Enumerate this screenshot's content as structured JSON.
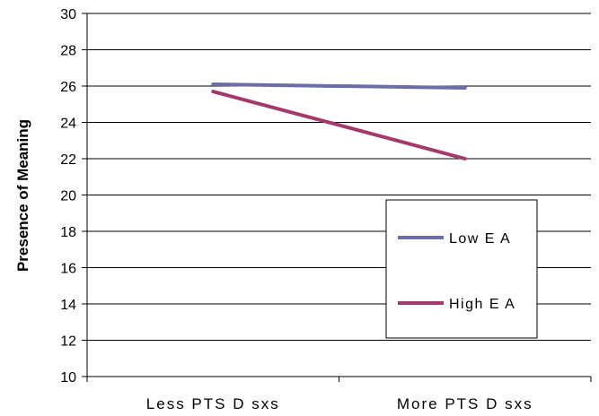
{
  "chart_data": {
    "type": "line",
    "categories": [
      "Less PTSD sxs",
      "More PTSD sxs"
    ],
    "series": [
      {
        "name": "Low EA",
        "values": [
          26.1,
          25.9
        ],
        "color": "#6A6DA8"
      },
      {
        "name": "High EA",
        "values": [
          25.7,
          22.0
        ],
        "color": "#A33A6B"
      }
    ],
    "ylabel": "Presence of Meaning",
    "ylim": [
      10,
      30
    ],
    "yticks": [
      10,
      12,
      14,
      16,
      18,
      20,
      22,
      24,
      26,
      28,
      30
    ],
    "category_labels": [
      "Less PTS D sxs",
      "More PTS D sxs"
    ],
    "legend_labels": [
      "Low E A",
      "High E A"
    ],
    "grid": true,
    "legend_position": "bottom-right"
  }
}
